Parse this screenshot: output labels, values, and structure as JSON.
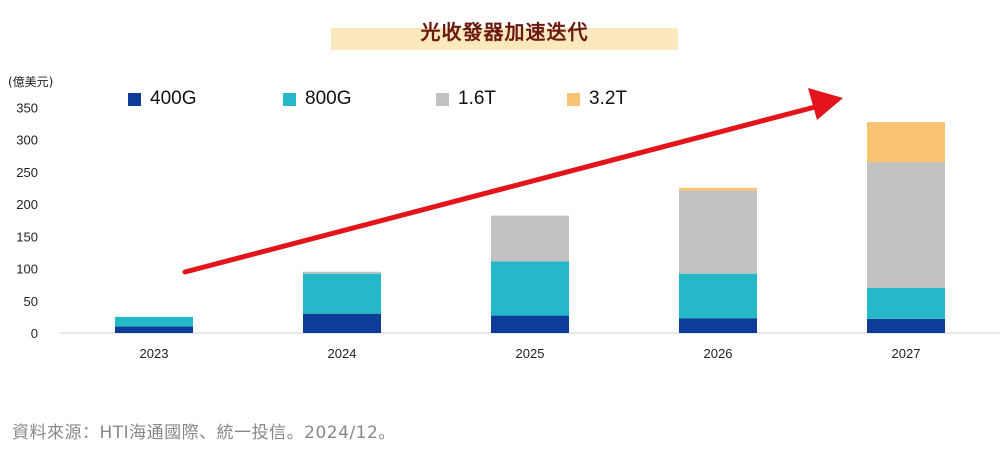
{
  "chart_data": {
    "type": "bar",
    "stacked": true,
    "title": "光收發器加速迭代",
    "ylabel": "(億美元)",
    "ylim": [
      0,
      350
    ],
    "yticks": [
      0,
      50,
      100,
      150,
      200,
      250,
      300,
      350
    ],
    "categories": [
      "2023",
      "2024",
      "2025",
      "2026",
      "2027"
    ],
    "series": [
      {
        "name": "400G",
        "color": "#0d3d96",
        "values": [
          10,
          30,
          27,
          23,
          22
        ]
      },
      {
        "name": "800G",
        "color": "#24b8c8",
        "values": [
          15,
          62,
          84,
          69,
          48
        ]
      },
      {
        "name": "1.6T",
        "color": "#c2c2c2",
        "values": [
          0,
          3,
          71,
          129,
          195
        ]
      },
      {
        "name": "3.2T",
        "color": "#f8c472",
        "values": [
          0,
          0,
          0,
          4,
          62
        ]
      }
    ],
    "legend_position": "top",
    "grid": false,
    "annotation": "upward trend arrow",
    "arrow_color": "#e3151a",
    "source": "資料來源：HTI海通國際、統一投信。2024/12。"
  }
}
